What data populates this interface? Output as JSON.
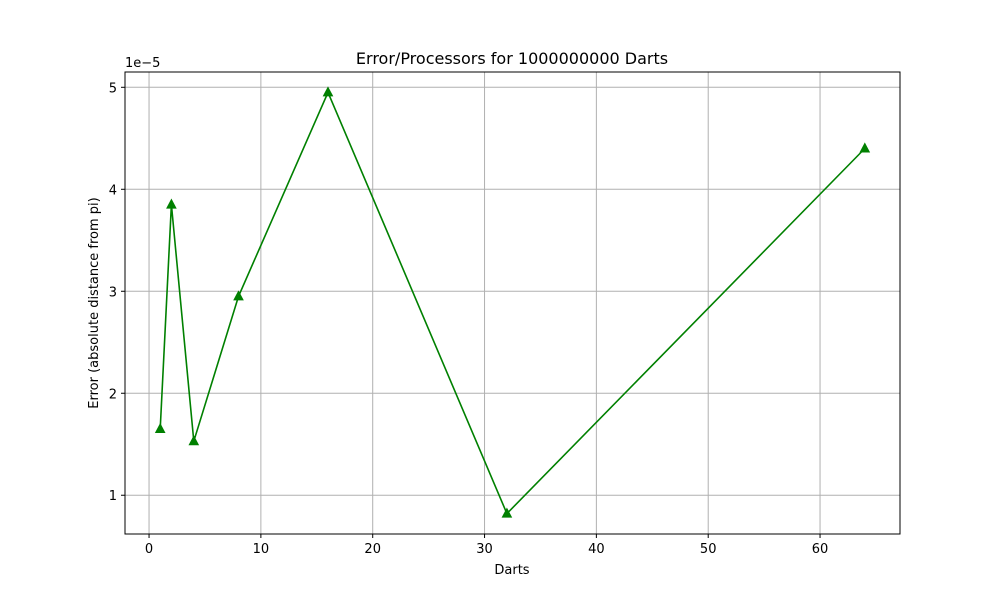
{
  "chart_data": {
    "type": "line",
    "title": "Error/Processors for 1000000000 Darts",
    "xlabel": "Darts",
    "ylabel": "Error (absolute distance from pi)",
    "y_offset_label": "1e−5",
    "x": [
      1,
      2,
      4,
      8,
      16,
      32,
      64
    ],
    "series": [
      {
        "values": [
          1.65e-05,
          3.85e-05,
          1.53e-05,
          2.95e-05,
          4.95e-05,
          8.2e-06,
          4.4e-05
        ],
        "color": "#008000",
        "marker": "triangle-up"
      }
    ],
    "xlim": [
      -2.15,
      67.15
    ],
    "ylim": [
      6.2e-06,
      5.15e-05
    ],
    "x_ticks": [
      0,
      10,
      20,
      30,
      40,
      50,
      60
    ],
    "x_tick_labels": [
      "0",
      "10",
      "20",
      "30",
      "40",
      "50",
      "60"
    ],
    "y_ticks": [
      1e-05,
      2e-05,
      3e-05,
      4e-05,
      5e-05
    ],
    "y_tick_labels": [
      "1",
      "2",
      "3",
      "4",
      "5"
    ],
    "grid": true
  }
}
